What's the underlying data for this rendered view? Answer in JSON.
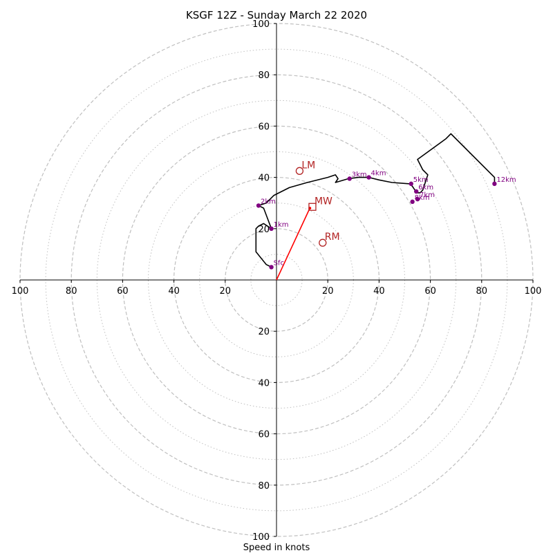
{
  "chart_data": {
    "type": "scatter",
    "title": "KSGF 12Z - Sunday March 22 2020",
    "xlabel": "Speed in knots",
    "ylabel": "",
    "xlim": [
      -100,
      100
    ],
    "ylim": [
      -100,
      100
    ],
    "ring_labels": [
      "20",
      "40",
      "60",
      "80",
      "100"
    ],
    "dashed_rings": [
      20,
      40,
      60,
      80,
      100
    ],
    "dotted_rings": [
      10,
      30,
      50,
      70,
      90
    ],
    "hodograph_trace": [
      [
        -2,
        5
      ],
      [
        -4,
        6
      ],
      [
        -8,
        11
      ],
      [
        -8,
        18
      ],
      [
        -8,
        20
      ],
      [
        -7,
        21
      ],
      [
        -5,
        22
      ],
      [
        -2,
        20
      ],
      [
        -5,
        28
      ],
      [
        -7,
        29
      ],
      [
        -4,
        30
      ],
      [
        -1,
        33
      ],
      [
        5,
        36
      ],
      [
        12,
        38
      ],
      [
        20,
        40
      ],
      [
        23,
        41
      ],
      [
        24,
        39.5
      ],
      [
        23,
        38
      ],
      [
        28,
        39.5
      ],
      [
        32,
        40
      ],
      [
        36,
        40
      ],
      [
        40,
        39
      ],
      [
        45,
        38
      ],
      [
        52,
        37.5
      ],
      [
        53,
        36.5
      ],
      [
        54,
        35
      ],
      [
        55,
        34
      ],
      [
        56,
        34
      ],
      [
        57,
        35
      ],
      [
        58,
        38
      ],
      [
        59,
        41
      ],
      [
        57,
        43
      ],
      [
        56,
        45
      ],
      [
        55,
        47
      ],
      [
        66,
        55
      ],
      [
        68,
        57
      ],
      [
        85,
        40
      ],
      [
        85,
        37
      ]
    ],
    "height_markers": [
      {
        "label": "Sfc",
        "x": -2,
        "y": 5
      },
      {
        "label": "1km",
        "x": -2,
        "y": 20
      },
      {
        "label": "2km",
        "x": -7,
        "y": 29
      },
      {
        "label": "3km",
        "x": 28.5,
        "y": 39.5
      },
      {
        "label": "4km",
        "x": 36,
        "y": 40
      },
      {
        "label": "5km",
        "x": 52.5,
        "y": 37.5
      },
      {
        "label": "6km",
        "x": 54.5,
        "y": 34.5
      },
      {
        "label": "7km",
        "x": 55,
        "y": 31.5
      },
      {
        "label": "8km",
        "x": 53,
        "y": 30.5
      },
      {
        "label": "12km",
        "x": 85,
        "y": 37.5
      }
    ],
    "motion_markers": [
      {
        "label": "LM",
        "x": 9,
        "y": 42.5,
        "shape": "circle"
      },
      {
        "label": "MW",
        "x": 14,
        "y": 28.5,
        "shape": "square"
      },
      {
        "label": "RM",
        "x": 18,
        "y": 14.5,
        "shape": "circle"
      }
    ],
    "mean_wind_vector": {
      "from": [
        0,
        0
      ],
      "to": [
        13,
        28
      ]
    },
    "grid": true,
    "legend": "none"
  },
  "colors": {
    "trace": "#000000",
    "height_marker": "#800080",
    "motion_marker": "#b22222",
    "vector": "#ff0000",
    "grid": "#bfbfbf",
    "axes": "#000000"
  }
}
